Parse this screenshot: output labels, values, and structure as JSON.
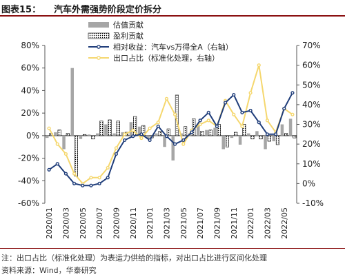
{
  "header": {
    "label": "图表15：",
    "title": "汽车外需强势阶段定价拆分"
  },
  "footer": {
    "note": "注：出口占比（标准化处理）为表运力供给的指标，对出口占比进行区间化处理",
    "source": "资料来源：Wind，华泰研究"
  },
  "colors": {
    "title_rule": "#8a0f10",
    "bar_valuation": "#a6a6a6",
    "bar_earnings_border": "#000000",
    "line_relative": "#1f3d7a",
    "line_export": "#f5d76e"
  },
  "chart_data": {
    "type": "bar+line",
    "categories": [
      "2020/01",
      "2020/02",
      "2020/03",
      "2020/04",
      "2020/05",
      "2020/06",
      "2020/07",
      "2020/08",
      "2020/09",
      "2020/10",
      "2020/11",
      "2020/12",
      "2021/01",
      "2021/02",
      "2021/03",
      "2021/04",
      "2021/05",
      "2021/06",
      "2021/07",
      "2021/08",
      "2021/09",
      "2021/10",
      "2021/11",
      "2021/12",
      "2022/01",
      "2022/02",
      "2022/03",
      "2022/04",
      "2022/05",
      "2022/06"
    ],
    "x_tick_labels": [
      "2020/01",
      "2020/03",
      "2020/05",
      "2020/07",
      "2020/09",
      "2020/11",
      "2021/01",
      "2021/03",
      "2021/05",
      "2021/07",
      "2021/09",
      "2021/11",
      "2022/01",
      "2022/03",
      "2022/05"
    ],
    "left_axis": {
      "ylim": [
        -60,
        80
      ],
      "ticks": [
        "-60%",
        "-40%",
        "-20%",
        "0%",
        "20%",
        "40%",
        "60%",
        "80%"
      ]
    },
    "right_axis": {
      "ylim": [
        -10,
        70
      ],
      "ticks": [
        "-10%",
        "0%",
        "10%",
        "20%",
        "30%",
        "40%",
        "50%",
        "60%",
        "70%"
      ]
    },
    "series": [
      {
        "name": "估值贡献",
        "kind": "bar",
        "axis": "left",
        "values": [
          -2,
          3,
          -12,
          60,
          -3,
          1,
          2,
          10,
          2,
          3,
          12,
          8,
          -3,
          2,
          -10,
          -22,
          2,
          2,
          10,
          5,
          7,
          -12,
          -2,
          -8,
          2,
          4,
          -12,
          -5,
          10,
          15
        ]
      },
      {
        "name": "盈利贡献",
        "kind": "bar",
        "axis": "left",
        "values": [
          2,
          5,
          2,
          -36,
          1,
          -3,
          13,
          14,
          13,
          3,
          17,
          9,
          -2,
          4,
          6,
          36,
          8,
          15,
          4,
          5,
          10,
          -10,
          3,
          10,
          -3,
          -3,
          -5,
          -8,
          2,
          -2
        ]
      },
      {
        "name": "相对收益：汽车vs万得全A（右轴）",
        "kind": "line",
        "axis": "right",
        "values": [
          7,
          10,
          5,
          0,
          -1,
          -1,
          0,
          3,
          15,
          22,
          24,
          25,
          22,
          29,
          24,
          20,
          22,
          26,
          32,
          36,
          29,
          41,
          45,
          36,
          37,
          31,
          25,
          25,
          38,
          46
        ]
      },
      {
        "name": "出口占比（标准化处理，右轴）",
        "kind": "line",
        "axis": "right",
        "values": [
          28,
          20,
          15,
          5,
          0,
          3,
          3,
          8,
          18,
          25,
          27,
          23,
          28,
          31,
          43,
          35,
          20,
          27,
          30,
          32,
          29,
          42,
          35,
          29,
          46,
          60,
          32,
          26,
          38,
          35
        ]
      }
    ],
    "legend_position": "top-center",
    "grid": false
  }
}
